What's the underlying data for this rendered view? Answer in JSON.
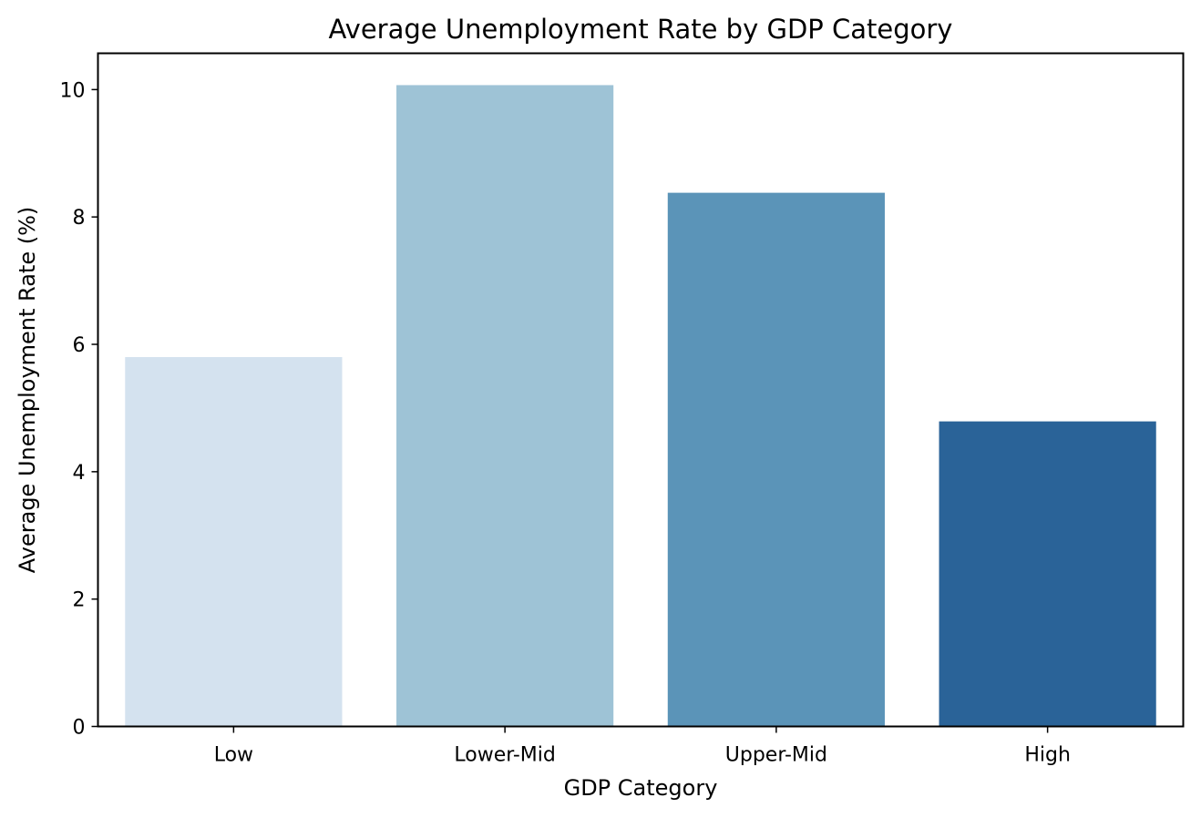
{
  "chart_data": {
    "type": "bar",
    "title": "Average Unemployment Rate by GDP Category",
    "xlabel": "GDP Category",
    "ylabel": "Average Unemployment Rate (%)",
    "categories": [
      "Low",
      "Lower-Mid",
      "Upper-Mid",
      "High"
    ],
    "values": [
      5.8,
      10.07,
      8.38,
      4.79
    ],
    "colors": [
      "#d4e2ef",
      "#9ec3d6",
      "#5b94b8",
      "#2a6398"
    ],
    "ylim": [
      0,
      10.57
    ],
    "yticks": [
      0,
      2,
      4,
      6,
      8,
      10
    ],
    "grid": false,
    "legend": "none"
  }
}
